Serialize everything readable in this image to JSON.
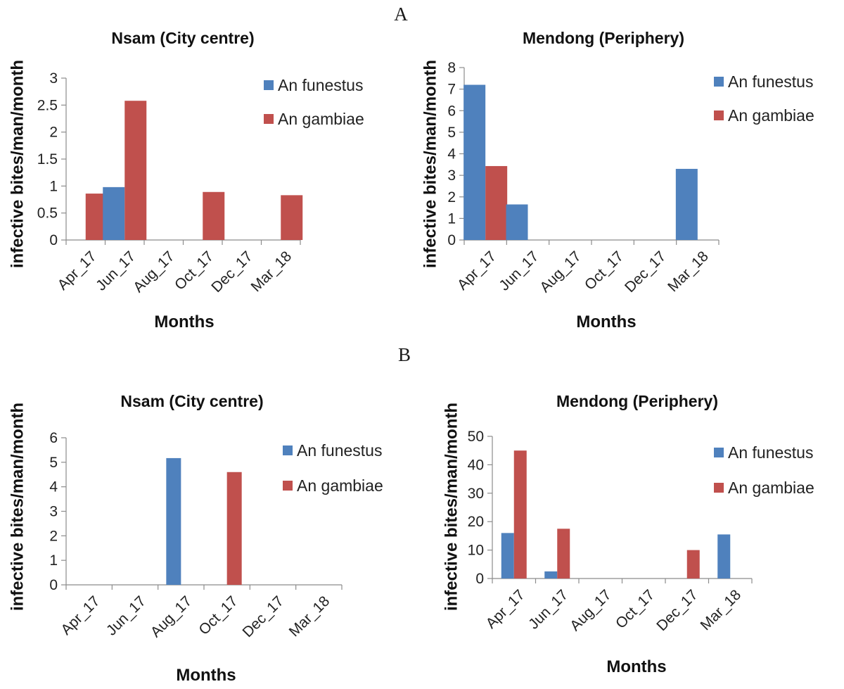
{
  "panels": [
    {
      "label": "A"
    },
    {
      "label": "B"
    }
  ],
  "colors": {
    "An funestus": "#4f81bd",
    "An gambiae": "#c0504d"
  },
  "chart_data": [
    {
      "type": "bar",
      "panel": "A",
      "title": "Nsam (City centre)",
      "xlabel": "Months",
      "ylabel": "infective bites/man/month",
      "categories": [
        "Apr_17",
        "Jun_17",
        "Aug_17",
        "Oct_17",
        "Dec_17",
        "Mar_18"
      ],
      "series": [
        {
          "name": "An funestus",
          "values": [
            0,
            0.98,
            0,
            0,
            0,
            0
          ]
        },
        {
          "name": "An gambiae",
          "values": [
            0.86,
            2.58,
            0,
            0.89,
            0,
            0.83
          ]
        }
      ],
      "ylim": [
        0,
        3
      ],
      "yticks": [
        0,
        0.5,
        1,
        1.5,
        2,
        2.5,
        3
      ],
      "ytick_labels": [
        "0",
        "0.5",
        "1",
        "1.5",
        "2",
        "2.5",
        "3"
      ],
      "legend": "top-right"
    },
    {
      "type": "bar",
      "panel": "A",
      "title": "Mendong (Periphery)",
      "xlabel": "Months",
      "ylabel": "infective bites/man/month",
      "categories": [
        "Apr_17",
        "Jun_17",
        "Aug_17",
        "Oct_17",
        "Dec_17",
        "Mar_18"
      ],
      "series": [
        {
          "name": "An funestus",
          "values": [
            7.2,
            1.65,
            0,
            0,
            0,
            3.3
          ]
        },
        {
          "name": "An gambiae",
          "values": [
            3.43,
            0,
            0,
            0,
            0,
            0
          ]
        }
      ],
      "ylim": [
        0,
        8
      ],
      "yticks": [
        0,
        1,
        2,
        3,
        4,
        5,
        6,
        7,
        8
      ],
      "ytick_labels": [
        "0",
        "1",
        "2",
        "3",
        "4",
        "5",
        "6",
        "7",
        "8"
      ],
      "legend": "top-right"
    },
    {
      "type": "bar",
      "panel": "B",
      "title": "Nsam (City centre)",
      "xlabel": "Months",
      "ylabel": "infective bites/man/month",
      "categories": [
        "Apr_17",
        "Jun_17",
        "Aug_17",
        "Oct_17",
        "Dec_17",
        "Mar_18"
      ],
      "series": [
        {
          "name": "An funestus",
          "values": [
            0,
            0,
            5.17,
            0,
            0,
            0
          ]
        },
        {
          "name": "An gambiae",
          "values": [
            0,
            0,
            0,
            4.6,
            0,
            0
          ]
        }
      ],
      "ylim": [
        0,
        6
      ],
      "yticks": [
        0,
        1,
        2,
        3,
        4,
        5,
        6
      ],
      "ytick_labels": [
        "0",
        "1",
        "2",
        "3",
        "4",
        "5",
        "6"
      ],
      "legend": "top-right"
    },
    {
      "type": "bar",
      "panel": "B",
      "title": "Mendong (Periphery)",
      "xlabel": "Months",
      "ylabel": "infective bites/man/month",
      "categories": [
        "Apr_17",
        "Jun_17",
        "Aug_17",
        "Oct_17",
        "Dec_17",
        "Mar_18"
      ],
      "series": [
        {
          "name": "An funestus",
          "values": [
            16,
            2.5,
            0,
            0,
            0,
            15.5
          ]
        },
        {
          "name": "An gambiae",
          "values": [
            45,
            17.5,
            0,
            0,
            10,
            0
          ]
        }
      ],
      "ylim": [
        0,
        50
      ],
      "yticks": [
        0,
        10,
        20,
        30,
        40,
        50
      ],
      "ytick_labels": [
        "0",
        "10",
        "20",
        "30",
        "40",
        "50"
      ],
      "legend": "top-right"
    }
  ]
}
